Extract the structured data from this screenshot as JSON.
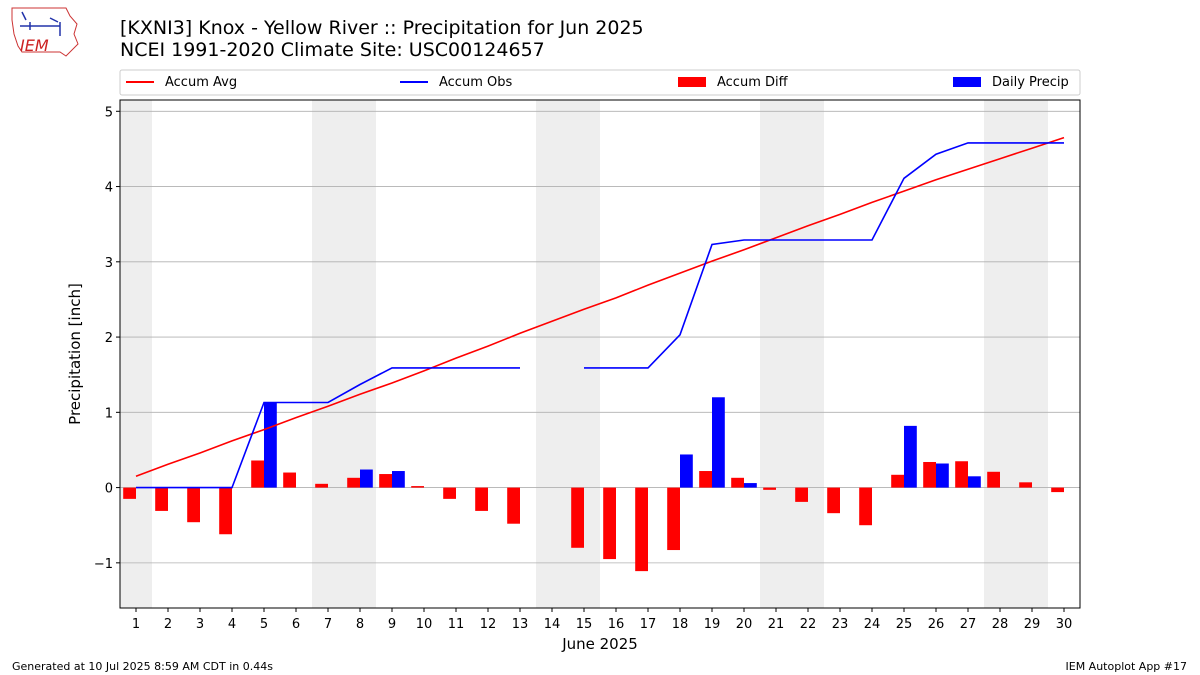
{
  "header": {
    "logo_text": "IEM",
    "title_line1": "[KXNI3] Knox - Yellow River :: Precipitation for Jun 2025",
    "title_line2": "NCEI 1991-2020 Climate Site: USC00124657"
  },
  "footer": {
    "left": "Generated at 10 Jul 2025 8:59 AM CDT in 0.44s",
    "right": "IEM Autoplot App #17"
  },
  "colors": {
    "accum_avg": "#ff0000",
    "accum_obs": "#0000ff",
    "accum_diff": "#ff0000",
    "daily_precip": "#0000ff",
    "weekend_shade": "#eeeeee",
    "grid": "#b0b0b0"
  },
  "chart_data": {
    "type": "bar+line",
    "xlabel": "June 2025",
    "ylabel": "Precipitation [inch]",
    "ylim": [
      -1.6,
      5.15
    ],
    "xlim": [
      0.5,
      30.5
    ],
    "yticks": [
      -1,
      0,
      1,
      2,
      3,
      4,
      5
    ],
    "ytick_labels": [
      "−1",
      "0",
      "1",
      "2",
      "3",
      "4",
      "5"
    ],
    "days": [
      1,
      2,
      3,
      4,
      5,
      6,
      7,
      8,
      9,
      10,
      11,
      12,
      13,
      14,
      15,
      16,
      17,
      18,
      19,
      20,
      21,
      22,
      23,
      24,
      25,
      26,
      27,
      28,
      29,
      30
    ],
    "weekend_spans": [
      [
        1,
        1
      ],
      [
        7,
        8
      ],
      [
        14,
        15
      ],
      [
        21,
        22
      ],
      [
        28,
        29
      ]
    ],
    "grid": "horizontal",
    "legend": {
      "placement": "top",
      "entries": [
        "Accum Avg",
        "Accum Obs",
        "Accum Diff",
        "Daily Precip"
      ]
    },
    "series": [
      {
        "name": "Accum Avg",
        "kind": "line",
        "values": [
          0.15,
          0.31,
          0.46,
          0.62,
          0.77,
          0.93,
          1.08,
          1.24,
          1.39,
          1.55,
          1.72,
          1.88,
          2.05,
          2.21,
          2.37,
          2.52,
          2.69,
          2.85,
          3.01,
          3.16,
          3.32,
          3.48,
          3.63,
          3.79,
          3.94,
          4.09,
          4.23,
          4.37,
          4.51,
          4.65
        ]
      },
      {
        "name": "Accum Obs",
        "kind": "line",
        "values": [
          0.0,
          0.0,
          0.0,
          0.0,
          1.13,
          1.13,
          1.13,
          1.37,
          1.59,
          1.59,
          1.59,
          1.59,
          1.59,
          null,
          1.59,
          1.59,
          1.59,
          2.03,
          3.23,
          3.29,
          3.29,
          3.29,
          3.29,
          3.29,
          4.11,
          4.43,
          4.58,
          4.58,
          4.58,
          4.58
        ]
      },
      {
        "name": "Accum Diff",
        "kind": "bar",
        "values": [
          -0.15,
          -0.31,
          -0.46,
          -0.62,
          0.36,
          0.2,
          0.05,
          0.13,
          0.18,
          0.02,
          -0.15,
          -0.31,
          -0.48,
          null,
          -0.8,
          -0.95,
          -1.11,
          -0.83,
          0.22,
          0.13,
          -0.03,
          -0.19,
          -0.34,
          -0.5,
          0.17,
          0.34,
          0.35,
          0.21,
          0.07,
          -0.06
        ]
      },
      {
        "name": "Daily Precip",
        "kind": "bar",
        "values": [
          0,
          0,
          0,
          0,
          1.13,
          0,
          0,
          0.24,
          0.22,
          0,
          0,
          0,
          0,
          null,
          0,
          0,
          0,
          0.44,
          1.2,
          0.06,
          0,
          0,
          0,
          0,
          0.82,
          0.32,
          0.15,
          0,
          0,
          0
        ]
      }
    ]
  }
}
